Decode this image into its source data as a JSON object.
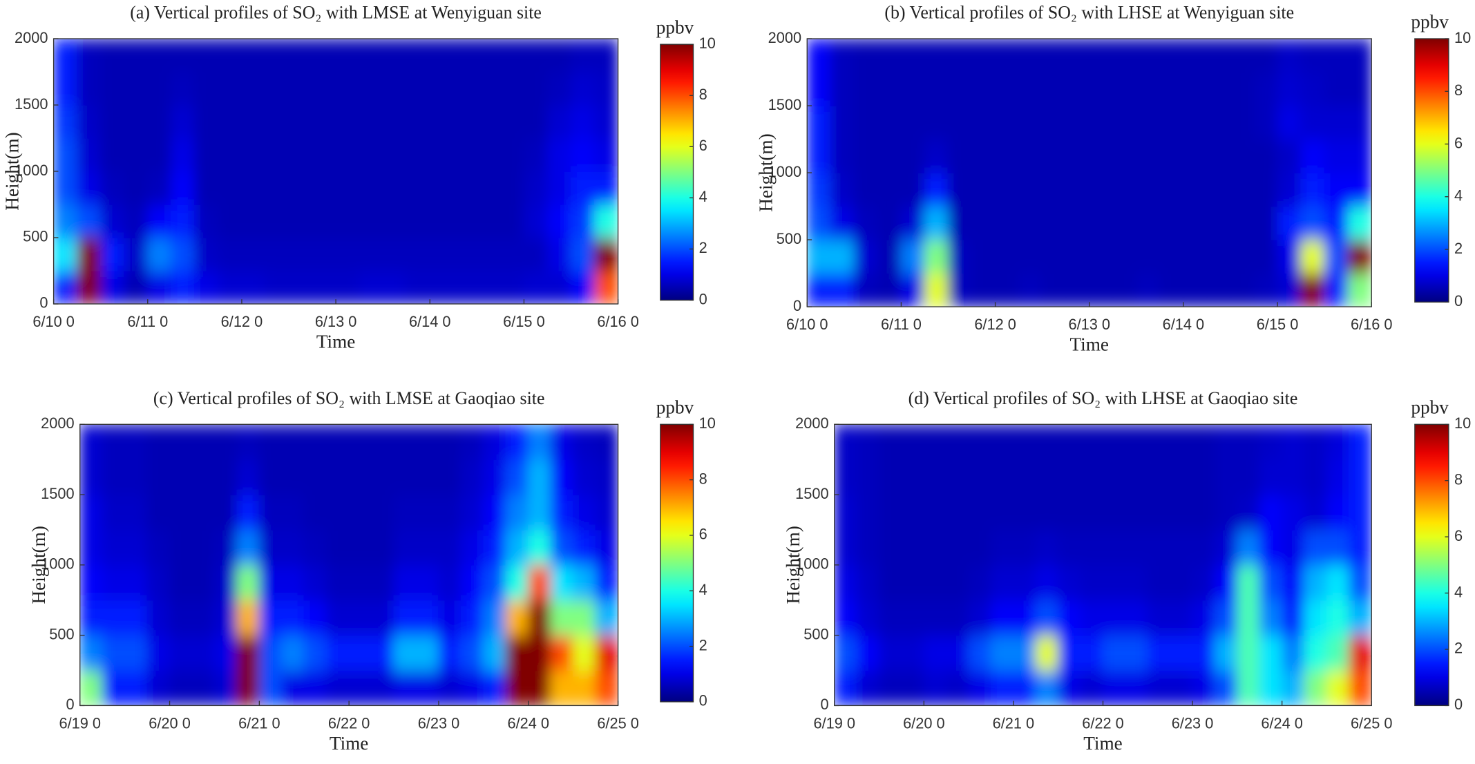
{
  "chart_data": [
    {
      "type": "heatmap",
      "title": "(a) Vertical profiles of SO₂ with LMSE at Wenyiguan site",
      "x_label": "Time",
      "y_label": "Height(m)",
      "xticks": [
        "6/10 0",
        "6/11 0",
        "6/12 0",
        "6/13 0",
        "6/14 0",
        "6/15 0",
        "6/16 0"
      ],
      "ylim": [
        0,
        2000
      ],
      "yticks": [
        0,
        500,
        1000,
        1500,
        2000
      ],
      "colormap": "jet",
      "clim": [
        0,
        10
      ],
      "colorbar_ticks": [
        0,
        2,
        4,
        6,
        8,
        10
      ],
      "colorbar_label": "ppbv",
      "z": [
        [
          1.5,
          10,
          1,
          0.5,
          1,
          1.5,
          1,
          0.8,
          0.8,
          0.7,
          0.7,
          0.7,
          0.7,
          0.8,
          0.8,
          0.7,
          0.7,
          0.7,
          0.7,
          0.7,
          0.8,
          0.8,
          1.2,
          8
        ],
        [
          3.5,
          10,
          1.5,
          0.7,
          2.5,
          2,
          0.7,
          0.6,
          0.6,
          0.6,
          0.6,
          0.6,
          0.6,
          0.6,
          0.6,
          0.6,
          0.6,
          0.6,
          0.6,
          0.6,
          0.6,
          1,
          2,
          10
        ],
        [
          2.5,
          2,
          0.8,
          0.6,
          1.2,
          1.5,
          0.6,
          0.5,
          0.5,
          0.5,
          0.5,
          0.5,
          0.5,
          0.5,
          0.5,
          0.5,
          0.5,
          0.5,
          0.5,
          0.5,
          0.8,
          1.2,
          1.8,
          4
        ],
        [
          2,
          1,
          0.6,
          0.5,
          0.6,
          1.2,
          0.5,
          0.5,
          0.5,
          0.5,
          0.5,
          0.5,
          0.5,
          0.5,
          0.5,
          0.5,
          0.5,
          0.5,
          0.5,
          0.5,
          0.7,
          1,
          1.5,
          1.5
        ],
        [
          2,
          0.8,
          0.5,
          0.5,
          0.5,
          1,
          0.5,
          0.5,
          0.5,
          0.5,
          0.5,
          0.5,
          0.5,
          0.5,
          0.5,
          0.5,
          0.5,
          0.5,
          0.5,
          0.5,
          0.6,
          1,
          1.2,
          1
        ],
        [
          1.8,
          0.7,
          0.5,
          0.5,
          0.5,
          0.8,
          0.5,
          0.5,
          0.5,
          0.5,
          0.5,
          0.5,
          0.5,
          0.5,
          0.5,
          0.5,
          0.5,
          0.5,
          0.5,
          0.5,
          0.5,
          0.8,
          1,
          0.8
        ],
        [
          1.5,
          0.6,
          0.5,
          0.5,
          0.5,
          0.6,
          0.5,
          0.5,
          0.5,
          0.5,
          0.5,
          0.5,
          0.5,
          0.5,
          0.5,
          0.5,
          0.5,
          0.5,
          0.5,
          0.5,
          0.5,
          0.6,
          0.8,
          0.7
        ],
        [
          1.5,
          0.6,
          0.5,
          0.5,
          0.5,
          0.5,
          0.5,
          0.5,
          0.5,
          0.5,
          0.5,
          0.5,
          0.5,
          0.5,
          0.5,
          0.5,
          0.5,
          0.5,
          0.5,
          0.5,
          0.5,
          0.5,
          0.6,
          0.6
        ]
      ]
    },
    {
      "type": "heatmap",
      "title": "(b) Vertical profiles of SO₂ with LHSE at Wenyiguan site",
      "x_label": "Time",
      "y_label": "Height(m)",
      "xticks": [
        "6/10 0",
        "6/11 0",
        "6/12 0",
        "6/13 0",
        "6/14 0",
        "6/15 0",
        "6/16 0"
      ],
      "ylim": [
        0,
        2000
      ],
      "yticks": [
        0,
        500,
        1000,
        1500,
        2000
      ],
      "colormap": "jet",
      "clim": [
        0,
        10
      ],
      "colorbar_ticks": [
        0,
        2,
        4,
        6,
        8,
        10
      ],
      "colorbar_label": "ppbv",
      "z": [
        [
          1.5,
          1.5,
          0.6,
          0.5,
          1,
          6,
          0.6,
          0.5,
          0.5,
          0.6,
          0.5,
          0.5,
          0.5,
          0.5,
          0.6,
          0.5,
          0.5,
          0.5,
          0.5,
          0.6,
          0.8,
          10,
          1.5,
          5
        ],
        [
          3,
          3,
          0.8,
          0.5,
          2.5,
          5,
          0.6,
          0.5,
          0.5,
          0.5,
          0.5,
          0.5,
          0.5,
          0.5,
          0.5,
          0.5,
          0.5,
          0.5,
          0.5,
          0.5,
          1,
          6,
          2,
          10
        ],
        [
          2,
          1,
          0.6,
          0.5,
          0.8,
          3,
          0.5,
          0.5,
          0.5,
          0.5,
          0.5,
          0.5,
          0.5,
          0.5,
          0.5,
          0.5,
          0.5,
          0.5,
          0.5,
          0.5,
          1.5,
          2,
          1.5,
          4
        ],
        [
          1.8,
          0.7,
          0.5,
          0.5,
          0.5,
          1.5,
          0.5,
          0.5,
          0.5,
          0.5,
          0.5,
          0.5,
          0.5,
          0.5,
          0.5,
          0.5,
          0.5,
          0.5,
          0.5,
          0.5,
          0.8,
          1.5,
          1.2,
          1.2
        ],
        [
          1.5,
          0.6,
          0.5,
          0.5,
          0.5,
          0.7,
          0.5,
          0.5,
          0.5,
          0.5,
          0.5,
          0.5,
          0.5,
          0.5,
          0.5,
          0.5,
          0.5,
          0.5,
          0.5,
          0.5,
          0.7,
          1.2,
          1,
          1
        ],
        [
          1.5,
          0.6,
          0.5,
          0.5,
          0.5,
          0.5,
          0.5,
          0.5,
          0.5,
          0.5,
          0.5,
          0.5,
          0.5,
          0.5,
          0.5,
          0.5,
          0.5,
          0.5,
          0.5,
          0.6,
          1,
          0.8,
          0.8,
          0.8
        ],
        [
          1.2,
          0.6,
          0.5,
          0.5,
          0.5,
          0.5,
          0.5,
          0.5,
          0.5,
          0.5,
          0.5,
          0.5,
          0.5,
          0.5,
          0.5,
          0.5,
          0.5,
          0.5,
          0.5,
          0.6,
          0.8,
          0.7,
          0.6,
          0.6
        ],
        [
          1.2,
          0.6,
          0.5,
          0.5,
          0.5,
          0.5,
          0.5,
          0.5,
          0.5,
          0.5,
          0.5,
          0.5,
          0.5,
          0.5,
          0.5,
          0.5,
          0.5,
          0.5,
          0.5,
          0.5,
          0.7,
          0.6,
          0.6,
          0.6
        ]
      ]
    },
    {
      "type": "heatmap",
      "title": "(c) Vertical profiles of SO₂ with LMSE at Gaoqiao site",
      "x_label": "Time",
      "y_label": "Height(m)",
      "xticks": [
        "6/19 0",
        "6/20 0",
        "6/21 0",
        "6/22 0",
        "6/23 0",
        "6/24 0",
        "6/25 0"
      ],
      "ylim": [
        0,
        2000
      ],
      "yticks": [
        0,
        500,
        1000,
        1500,
        2000
      ],
      "colormap": "jet",
      "clim": [
        0,
        10
      ],
      "colorbar_ticks": [
        0,
        2,
        4,
        6,
        8,
        10
      ],
      "colorbar_label": "ppbv",
      "z": [
        [
          5,
          1.5,
          1.5,
          0.8,
          0.6,
          0.6,
          0.8,
          10,
          2,
          1,
          1,
          0.8,
          0.8,
          0.8,
          1,
          1,
          0.8,
          1,
          1.5,
          10,
          10,
          7,
          7,
          8
        ],
        [
          2.5,
          2,
          2,
          1,
          0.8,
          0.8,
          1,
          10,
          2,
          2.5,
          2,
          1.5,
          1.5,
          1.5,
          3,
          3,
          1.5,
          2,
          3,
          10,
          10,
          8,
          6,
          9
        ],
        [
          1.5,
          1.5,
          1.5,
          0.8,
          0.6,
          0.6,
          0.8,
          7,
          1.5,
          1.5,
          1.2,
          0.8,
          0.8,
          0.8,
          1.5,
          1.5,
          1,
          1.5,
          2.5,
          7,
          10,
          5,
          5,
          3
        ],
        [
          1.2,
          1,
          1,
          0.7,
          0.5,
          0.5,
          0.7,
          5,
          1,
          1,
          0.8,
          0.6,
          0.6,
          0.6,
          1,
          1,
          0.8,
          1.2,
          2,
          4,
          8,
          3.5,
          3,
          1.5
        ],
        [
          1,
          0.8,
          0.8,
          0.6,
          0.5,
          0.5,
          0.6,
          2.5,
          0.7,
          0.7,
          0.6,
          0.5,
          0.5,
          0.5,
          0.7,
          0.7,
          0.7,
          1,
          1.5,
          3,
          4,
          2,
          1.5,
          1
        ],
        [
          1,
          0.7,
          0.7,
          0.5,
          0.5,
          0.5,
          0.5,
          1.5,
          0.6,
          0.6,
          0.5,
          0.5,
          0.5,
          0.5,
          0.6,
          0.6,
          0.6,
          0.8,
          1.2,
          2.5,
          3,
          1.5,
          1,
          0.8
        ],
        [
          0.8,
          0.6,
          0.6,
          0.5,
          0.5,
          0.5,
          0.5,
          0.8,
          0.5,
          0.5,
          0.5,
          0.5,
          0.5,
          0.5,
          0.5,
          0.5,
          0.5,
          0.7,
          1,
          2,
          3,
          1.2,
          0.8,
          0.7
        ],
        [
          0.8,
          0.6,
          0.6,
          0.5,
          0.5,
          0.5,
          0.5,
          0.6,
          0.5,
          0.5,
          0.5,
          0.5,
          0.5,
          0.5,
          0.5,
          0.5,
          0.5,
          0.6,
          0.9,
          1.5,
          2.5,
          1,
          0.7,
          0.6
        ]
      ]
    },
    {
      "type": "heatmap",
      "title": "(d) Vertical profiles of SO₂ with LHSE at Gaoqiao site",
      "x_label": "Time",
      "y_label": "Height(m)",
      "xticks": [
        "6/19 0",
        "6/20 0",
        "6/21 0",
        "6/22 0",
        "6/23 0",
        "6/24 0",
        "6/25 0"
      ],
      "ylim": [
        0,
        2000
      ],
      "yticks": [
        0,
        500,
        1000,
        1500,
        2000
      ],
      "colormap": "jet",
      "clim": [
        0,
        10
      ],
      "colorbar_ticks": [
        0,
        2,
        4,
        6,
        8,
        10
      ],
      "colorbar_label": "ppbv",
      "z": [
        [
          1.5,
          0.8,
          0.6,
          0.6,
          0.8,
          0.7,
          1,
          1.5,
          1.5,
          2.5,
          1,
          0.8,
          1,
          1,
          0.8,
          0.8,
          1,
          2,
          4.5,
          3.5,
          3,
          5,
          6,
          8
        ],
        [
          2,
          1.2,
          0.8,
          0.8,
          1,
          1,
          2,
          2.5,
          2.5,
          6,
          1.5,
          1.5,
          2,
          2,
          1.5,
          1.5,
          1.5,
          3,
          4.5,
          3.5,
          2.5,
          4,
          4.5,
          9
        ],
        [
          1.2,
          0.8,
          0.6,
          0.6,
          0.6,
          0.6,
          0.8,
          1.2,
          1.2,
          2,
          1.2,
          1,
          1,
          1,
          0.8,
          0.8,
          1,
          2,
          4.5,
          2.5,
          1.5,
          3.5,
          4,
          3
        ],
        [
          1,
          0.7,
          0.5,
          0.5,
          0.5,
          0.5,
          0.6,
          0.8,
          0.8,
          1,
          0.8,
          0.7,
          0.7,
          0.7,
          0.6,
          0.6,
          0.7,
          1.2,
          4.5,
          2,
          1.2,
          3,
          3.5,
          2
        ],
        [
          0.8,
          0.6,
          0.5,
          0.5,
          0.5,
          0.5,
          0.5,
          0.6,
          0.6,
          0.7,
          0.6,
          0.6,
          0.6,
          0.6,
          0.6,
          0.6,
          0.6,
          0.8,
          2.5,
          1.2,
          1,
          2,
          2,
          1.5
        ],
        [
          0.8,
          0.6,
          0.5,
          0.5,
          0.5,
          0.5,
          0.5,
          0.5,
          0.5,
          0.5,
          0.5,
          0.5,
          0.5,
          0.5,
          0.5,
          0.5,
          0.5,
          0.6,
          0.7,
          1.2,
          1,
          0.8,
          1.2,
          1.5
        ],
        [
          0.7,
          0.6,
          0.5,
          0.5,
          0.5,
          0.5,
          0.5,
          0.5,
          0.5,
          0.5,
          0.5,
          0.5,
          0.5,
          0.5,
          0.5,
          0.5,
          0.5,
          0.6,
          0.6,
          0.8,
          0.8,
          0.7,
          1,
          1.5
        ],
        [
          0.7,
          0.6,
          0.5,
          0.5,
          0.5,
          0.5,
          0.5,
          0.5,
          0.5,
          0.5,
          0.5,
          0.5,
          0.5,
          0.5,
          0.5,
          0.5,
          0.5,
          0.6,
          0.6,
          0.7,
          0.8,
          0.7,
          0.9,
          1.5
        ]
      ]
    }
  ]
}
